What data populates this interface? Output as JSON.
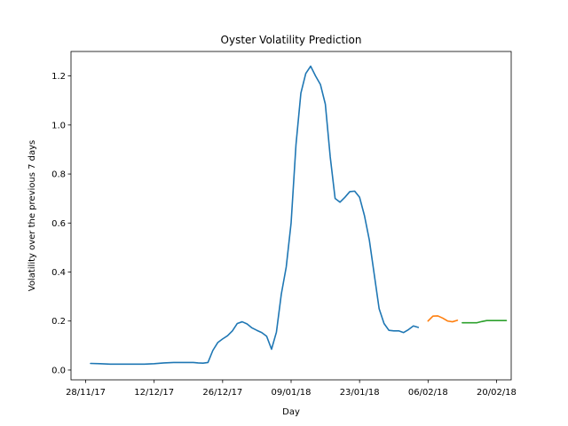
{
  "chart_data": {
    "type": "line",
    "title": "Oyster Volatility Prediction",
    "xlabel": "Day",
    "ylabel": "Volatility over the previous 7 days",
    "x_ticks": [
      "28/11/17",
      "12/12/17",
      "26/12/17",
      "09/01/18",
      "23/01/18",
      "06/02/18",
      "20/02/18"
    ],
    "y_ticks": [
      "0.0",
      "0.2",
      "0.4",
      "0.6",
      "0.8",
      "1.0",
      "1.2"
    ],
    "xlim": [
      "2017-11-25",
      "2018-02-23"
    ],
    "ylim": [
      -0.04,
      1.3
    ],
    "grid": false,
    "legend": "none",
    "series": [
      {
        "color": "#1f77b4",
        "points": [
          [
            "2017-11-29",
            0.027
          ],
          [
            "2017-12-01",
            0.026
          ],
          [
            "2017-12-03",
            0.024
          ],
          [
            "2017-12-05",
            0.024
          ],
          [
            "2017-12-08",
            0.024
          ],
          [
            "2017-12-10",
            0.024
          ],
          [
            "2017-12-12",
            0.026
          ],
          [
            "2017-12-14",
            0.029
          ],
          [
            "2017-12-16",
            0.031
          ],
          [
            "2017-12-18",
            0.031
          ],
          [
            "2017-12-20",
            0.031
          ],
          [
            "2017-12-21",
            0.029
          ],
          [
            "2017-12-22",
            0.028
          ],
          [
            "2017-12-23",
            0.031
          ],
          [
            "2017-12-24",
            0.08
          ],
          [
            "2017-12-25",
            0.112
          ],
          [
            "2017-12-26",
            0.127
          ],
          [
            "2017-12-27",
            0.14
          ],
          [
            "2017-12-28",
            0.16
          ],
          [
            "2017-12-29",
            0.19
          ],
          [
            "2017-12-30",
            0.197
          ],
          [
            "2017-12-31",
            0.188
          ],
          [
            "2018-01-01",
            0.172
          ],
          [
            "2018-01-02",
            0.162
          ],
          [
            "2018-01-03",
            0.153
          ],
          [
            "2018-01-04",
            0.138
          ],
          [
            "2018-01-05",
            0.085
          ],
          [
            "2018-01-06",
            0.155
          ],
          [
            "2018-01-07",
            0.31
          ],
          [
            "2018-01-08",
            0.42
          ],
          [
            "2018-01-09",
            0.6
          ],
          [
            "2018-01-10",
            0.92
          ],
          [
            "2018-01-11",
            1.13
          ],
          [
            "2018-01-12",
            1.21
          ],
          [
            "2018-01-13",
            1.24
          ],
          [
            "2018-01-14",
            1.2
          ],
          [
            "2018-01-15",
            1.165
          ],
          [
            "2018-01-16",
            1.085
          ],
          [
            "2018-01-17",
            0.87
          ],
          [
            "2018-01-18",
            0.7
          ],
          [
            "2018-01-19",
            0.685
          ],
          [
            "2018-01-20",
            0.705
          ],
          [
            "2018-01-21",
            0.728
          ],
          [
            "2018-01-22",
            0.73
          ],
          [
            "2018-01-23",
            0.705
          ],
          [
            "2018-01-24",
            0.63
          ],
          [
            "2018-01-25",
            0.53
          ],
          [
            "2018-01-26",
            0.39
          ],
          [
            "2018-01-27",
            0.25
          ],
          [
            "2018-01-28",
            0.19
          ],
          [
            "2018-01-29",
            0.162
          ],
          [
            "2018-01-30",
            0.16
          ],
          [
            "2018-01-31",
            0.16
          ],
          [
            "2018-02-01",
            0.153
          ],
          [
            "2018-02-02",
            0.165
          ],
          [
            "2018-02-03",
            0.18
          ],
          [
            "2018-02-04",
            0.174
          ]
        ]
      },
      {
        "color": "#ff7f0e",
        "points": [
          [
            "2018-02-06",
            0.2
          ],
          [
            "2018-02-07",
            0.22
          ],
          [
            "2018-02-08",
            0.221
          ],
          [
            "2018-02-09",
            0.212
          ],
          [
            "2018-02-10",
            0.2
          ],
          [
            "2018-02-11",
            0.197
          ],
          [
            "2018-02-12",
            0.203
          ]
        ]
      },
      {
        "color": "#2ca02c",
        "points": [
          [
            "2018-02-13",
            0.193
          ],
          [
            "2018-02-14",
            0.193
          ],
          [
            "2018-02-15",
            0.193
          ],
          [
            "2018-02-16",
            0.193
          ],
          [
            "2018-02-17",
            0.198
          ],
          [
            "2018-02-18",
            0.202
          ],
          [
            "2018-02-20",
            0.202
          ],
          [
            "2018-02-21",
            0.202
          ],
          [
            "2018-02-22",
            0.202
          ]
        ]
      }
    ]
  }
}
